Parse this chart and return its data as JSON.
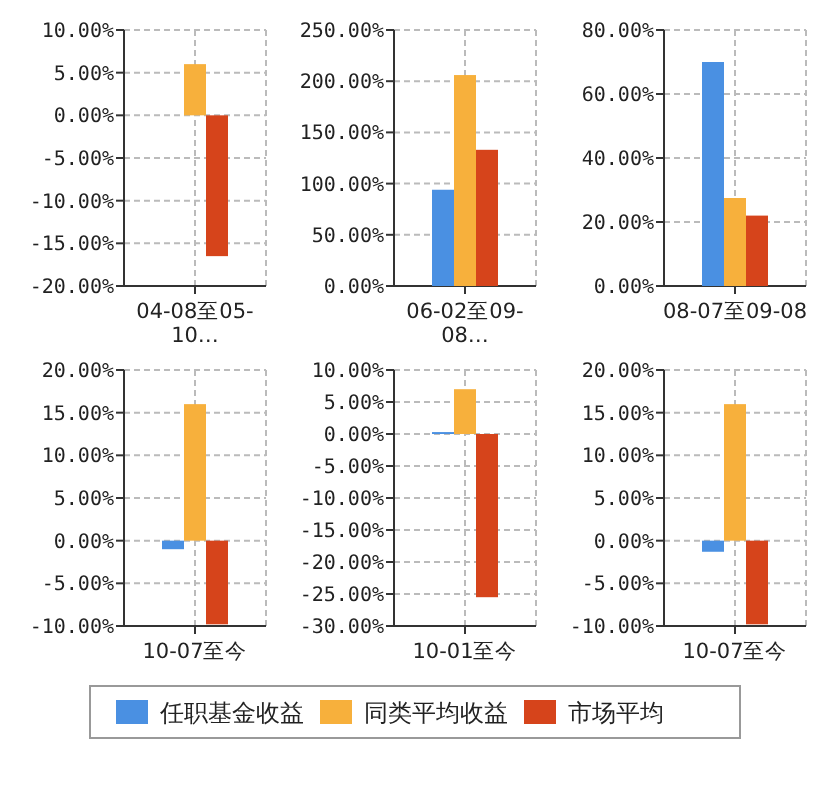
{
  "chart_data": [
    {
      "type": "bar",
      "categories": [
        "04-08至05-10…"
      ],
      "ylim": [
        -20,
        10
      ],
      "yticks": [
        {
          "value": -20,
          "label": "-20.00%"
        },
        {
          "value": -15,
          "label": "-15.00%"
        },
        {
          "value": -10,
          "label": "-10.00%"
        },
        {
          "value": -5,
          "label": "-5.00%"
        },
        {
          "value": 0,
          "label": "0.00%"
        },
        {
          "value": 5,
          "label": "5.00%"
        },
        {
          "value": 10,
          "label": "10.00%"
        }
      ],
      "grid": true,
      "legend": "bottom",
      "series": [
        {
          "name": "任职基金收益",
          "color": "#4a90e2",
          "values": [
            null
          ]
        },
        {
          "name": "同类平均收益",
          "color": "#f7b03c",
          "values": [
            6
          ]
        },
        {
          "name": "市场平均",
          "color": "#d6441b",
          "values": [
            -16.5
          ]
        }
      ]
    },
    {
      "type": "bar",
      "categories": [
        "06-02至09-08…"
      ],
      "ylim": [
        0,
        250
      ],
      "yticks": [
        {
          "value": 0,
          "label": "0.00%"
        },
        {
          "value": 50,
          "label": "50.00%"
        },
        {
          "value": 100,
          "label": "100.00%"
        },
        {
          "value": 150,
          "label": "150.00%"
        },
        {
          "value": 200,
          "label": "200.00%"
        },
        {
          "value": 250,
          "label": "250.00%"
        }
      ],
      "grid": true,
      "series": [
        {
          "color": "#4a90e2",
          "values": [
            94
          ]
        },
        {
          "color": "#f7b03c",
          "values": [
            206
          ]
        },
        {
          "color": "#d6441b",
          "values": [
            133
          ]
        }
      ]
    },
    {
      "type": "bar",
      "categories": [
        "08-07至09-08"
      ],
      "ylim": [
        0,
        80
      ],
      "yticks": [
        {
          "value": 0,
          "label": "0.00%"
        },
        {
          "value": 20,
          "label": "20.00%"
        },
        {
          "value": 40,
          "label": "40.00%"
        },
        {
          "value": 60,
          "label": "60.00%"
        },
        {
          "value": 80,
          "label": "80.00%"
        }
      ],
      "grid": true,
      "series": [
        {
          "color": "#4a90e2",
          "values": [
            70
          ]
        },
        {
          "color": "#f7b03c",
          "values": [
            27.5
          ]
        },
        {
          "color": "#d6441b",
          "values": [
            22
          ]
        }
      ]
    },
    {
      "type": "bar",
      "categories": [
        "10-07至今"
      ],
      "ylim": [
        -10,
        20
      ],
      "yticks": [
        {
          "value": -10,
          "label": "-10.00%"
        },
        {
          "value": -5,
          "label": "-5.00%"
        },
        {
          "value": 0,
          "label": "0.00%"
        },
        {
          "value": 5,
          "label": "5.00%"
        },
        {
          "value": 10,
          "label": "10.00%"
        },
        {
          "value": 15,
          "label": "15.00%"
        },
        {
          "value": 20,
          "label": "20.00%"
        }
      ],
      "grid": true,
      "series": [
        {
          "color": "#4a90e2",
          "values": [
            -1
          ]
        },
        {
          "color": "#f7b03c",
          "values": [
            16
          ]
        },
        {
          "color": "#d6441b",
          "values": [
            -9.8
          ]
        }
      ]
    },
    {
      "type": "bar",
      "categories": [
        "10-01至今"
      ],
      "ylim": [
        -30,
        10
      ],
      "yticks": [
        {
          "value": -30,
          "label": "-30.00%"
        },
        {
          "value": -25,
          "label": "-25.00%"
        },
        {
          "value": -20,
          "label": "-20.00%"
        },
        {
          "value": -15,
          "label": "-15.00%"
        },
        {
          "value": -10,
          "label": "-10.00%"
        },
        {
          "value": -5,
          "label": "-5.00%"
        },
        {
          "value": 0,
          "label": "0.00%"
        },
        {
          "value": 5,
          "label": "5.00%"
        },
        {
          "value": 10,
          "label": "10.00%"
        }
      ],
      "grid": true,
      "series": [
        {
          "color": "#4a90e2",
          "values": [
            0.3
          ]
        },
        {
          "color": "#f7b03c",
          "values": [
            7
          ]
        },
        {
          "color": "#d6441b",
          "values": [
            -25.5
          ]
        }
      ]
    },
    {
      "type": "bar",
      "categories": [
        "10-07至今"
      ],
      "ylim": [
        -10,
        20
      ],
      "yticks": [
        {
          "value": -10,
          "label": "-10.00%"
        },
        {
          "value": -5,
          "label": "-5.00%"
        },
        {
          "value": 0,
          "label": "0.00%"
        },
        {
          "value": 5,
          "label": "5.00%"
        },
        {
          "value": 10,
          "label": "10.00%"
        },
        {
          "value": 15,
          "label": "15.00%"
        },
        {
          "value": 20,
          "label": "20.00%"
        }
      ],
      "grid": true,
      "series": [
        {
          "color": "#4a90e2",
          "values": [
            -1.3
          ]
        },
        {
          "color": "#f7b03c",
          "values": [
            16
          ]
        },
        {
          "color": "#d6441b",
          "values": [
            -9.8
          ]
        }
      ]
    }
  ]
}
